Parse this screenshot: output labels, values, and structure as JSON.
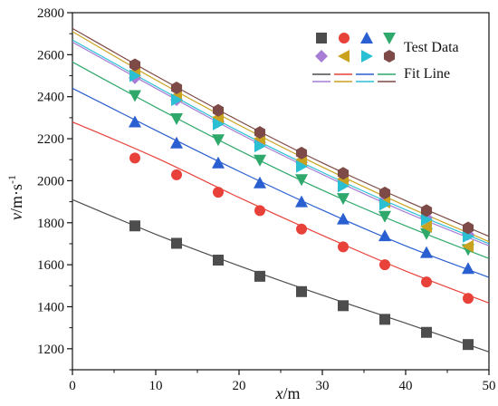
{
  "chart_data": {
    "type": "scatter",
    "title": "",
    "xlabel": {
      "var": "x",
      "unit": "/m"
    },
    "ylabel": {
      "var": "v",
      "unit": "/m·s",
      "sup": "-1"
    },
    "xlim": [
      0,
      50
    ],
    "ylim": [
      1100,
      2800
    ],
    "xticks": [
      0,
      10,
      20,
      30,
      40,
      50
    ],
    "yticks": [
      1200,
      1400,
      1600,
      1800,
      2000,
      2200,
      2400,
      2600,
      2800
    ],
    "grid": false,
    "legend": {
      "placement": "top-right",
      "test_label": "Test Data",
      "fit_label": "Fit Line"
    },
    "x_points": [
      7.5,
      12.5,
      17.5,
      22.5,
      27.5,
      32.5,
      37.5,
      42.5,
      47.5
    ],
    "series": [
      {
        "marker": "square",
        "color": "#4d4d4d",
        "values": [
          1785,
          1702,
          1622,
          1545,
          1472,
          1405,
          1340,
          1278,
          1220
        ],
        "fit": [
          [
            0,
            1910
          ],
          [
            10,
            1745
          ],
          [
            20,
            1595
          ],
          [
            30,
            1455
          ],
          [
            40,
            1322
          ],
          [
            50,
            1185
          ]
        ]
      },
      {
        "marker": "circle",
        "color": "#e8413a",
        "values": [
          2108,
          2028,
          1945,
          1858,
          1770,
          1685,
          1600,
          1518,
          1440
        ],
        "fit": [
          [
            0,
            2280
          ],
          [
            10,
            2110
          ],
          [
            20,
            1920
          ],
          [
            30,
            1740
          ],
          [
            40,
            1570
          ],
          [
            50,
            1418
          ]
        ]
      },
      {
        "marker": "triangle-up",
        "color": "#2a5fd1",
        "values": [
          2280,
          2180,
          2085,
          1990,
          1900,
          1818,
          1738,
          1658,
          1582
        ],
        "fit": [
          [
            0,
            2440
          ],
          [
            10,
            2240
          ],
          [
            20,
            2045
          ],
          [
            30,
            1860
          ],
          [
            40,
            1690
          ],
          [
            50,
            1540
          ]
        ]
      },
      {
        "marker": "triangle-down",
        "color": "#2ea86b",
        "values": [
          2405,
          2295,
          2195,
          2098,
          2005,
          1915,
          1830,
          1748,
          1672
        ],
        "fit": [
          [
            0,
            2565
          ],
          [
            10,
            2350
          ],
          [
            20,
            2145
          ],
          [
            30,
            1955
          ],
          [
            40,
            1785
          ],
          [
            50,
            1630
          ]
        ]
      },
      {
        "marker": "diamond",
        "color": "#a77dd6",
        "values": [
          2490,
          2385,
          2282,
          2182,
          2088,
          1998,
          1910,
          1825,
          1745
        ],
        "fit": [
          [
            0,
            2660
          ],
          [
            10,
            2440
          ],
          [
            20,
            2225
          ],
          [
            30,
            2030
          ],
          [
            40,
            1850
          ],
          [
            50,
            1690
          ]
        ]
      },
      {
        "marker": "triangle-left",
        "color": "#c9a21f",
        "values": [
          2520,
          2405,
          2302,
          2200,
          2100,
          2008,
          1898,
          1782,
          1688
        ],
        "fit": [
          [
            0,
            2710
          ],
          [
            10,
            2480
          ],
          [
            20,
            2265
          ],
          [
            30,
            2065
          ],
          [
            40,
            1880
          ],
          [
            50,
            1710
          ]
        ]
      },
      {
        "marker": "triangle-right",
        "color": "#2bbfd4",
        "values": [
          2500,
          2385,
          2270,
          2165,
          2068,
          1975,
          1888,
          1815,
          1735
        ],
        "fit": [
          [
            0,
            2670
          ],
          [
            10,
            2450
          ],
          [
            20,
            2235
          ],
          [
            30,
            2040
          ],
          [
            40,
            1862
          ],
          [
            50,
            1700
          ]
        ]
      },
      {
        "marker": "hexagon",
        "color": "#7d4a48",
        "values": [
          2552,
          2442,
          2335,
          2230,
          2132,
          2035,
          1942,
          1858,
          1775
        ],
        "fit": [
          [
            0,
            2725
          ],
          [
            10,
            2500
          ],
          [
            20,
            2285
          ],
          [
            30,
            2085
          ],
          [
            40,
            1905
          ],
          [
            50,
            1735
          ]
        ]
      }
    ]
  }
}
